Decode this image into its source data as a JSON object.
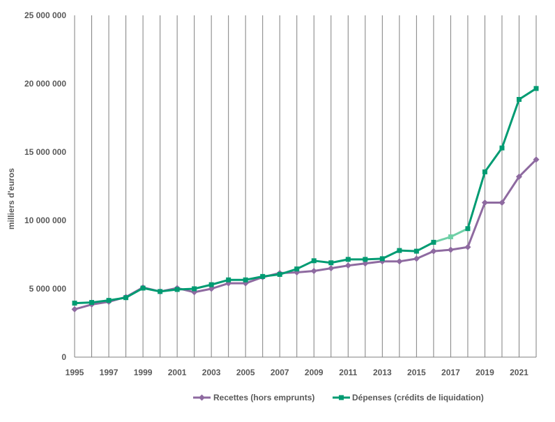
{
  "chart_data": {
    "type": "line",
    "title": "",
    "xlabel": "",
    "ylabel": "milliers d'euros",
    "x": [
      1995,
      1996,
      1997,
      1998,
      1999,
      2000,
      2001,
      2002,
      2003,
      2004,
      2005,
      2006,
      2007,
      2008,
      2009,
      2010,
      2011,
      2012,
      2013,
      2014,
      2015,
      2016,
      2017,
      2018,
      2019,
      2020,
      2021,
      2022
    ],
    "x_tick_labels": [
      "1995",
      "1997",
      "1999",
      "2001",
      "2003",
      "2005",
      "2007",
      "2009",
      "2011",
      "2013",
      "2015",
      "2017",
      "2019",
      "2021"
    ],
    "x_tick_values": [
      1995,
      1997,
      1999,
      2001,
      2003,
      2005,
      2007,
      2009,
      2011,
      2013,
      2015,
      2017,
      2019,
      2021
    ],
    "xlim": [
      1995,
      2022
    ],
    "ylim": [
      0,
      25000000
    ],
    "y_ticks": [
      0,
      5000000,
      10000000,
      15000000,
      20000000,
      25000000
    ],
    "y_tick_labels": [
      "0",
      "5 000 000",
      "10 000 000",
      "15 000 000",
      "20 000 000",
      "25 000 000"
    ],
    "grid": "vertical",
    "legend_position": "bottom",
    "series": [
      {
        "name": "Recettes (hors emprunts)",
        "color": "#8e6aa0",
        "marker": "diamond",
        "values": [
          3500000,
          3850000,
          4050000,
          4400000,
          5100000,
          4800000,
          5050000,
          4750000,
          5000000,
          5400000,
          5400000,
          5850000,
          6150000,
          6200000,
          6300000,
          6500000,
          6700000,
          6850000,
          7000000,
          7000000,
          7200000,
          7750000,
          7850000,
          8050000,
          11300000,
          11300000,
          13200000,
          14450000
        ]
      },
      {
        "name": "Dépenses (crédits de liquidation)",
        "color": "#009b72",
        "highlight_color": "#6fd0a7",
        "highlight_segment": [
          2016,
          2018
        ],
        "marker": "square",
        "values": [
          3950000,
          4000000,
          4150000,
          4350000,
          5050000,
          4800000,
          4950000,
          5000000,
          5300000,
          5650000,
          5650000,
          5900000,
          6050000,
          6450000,
          7050000,
          6900000,
          7150000,
          7150000,
          7200000,
          7800000,
          7750000,
          8400000,
          8800000,
          9400000,
          13550000,
          15300000,
          18850000,
          19650000
        ]
      }
    ]
  }
}
